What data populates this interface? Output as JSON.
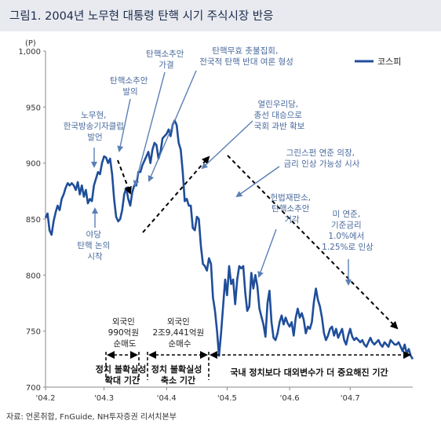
{
  "title": "그림1. 2004년 노무현 대통령 탄핵 시기 주식시장 반응",
  "source": "자료: 언론취합, FnGuide, NH투자증권 리서치본부",
  "colors": {
    "series": "#1f4e9a",
    "arrow": "#000000",
    "annotation": "#4a6a9c",
    "title_bg": "#e8eaf0"
  },
  "chart_data": {
    "type": "line",
    "ylabel": "(P)",
    "ylim": [
      700,
      1000
    ],
    "y_ticks": [
      "1,000",
      "950",
      "900",
      "850",
      "800",
      "750",
      "700"
    ],
    "x_tick_labels": [
      "'04.2",
      "'04.3",
      "'04.4",
      "'04.5",
      "'04.6",
      "'04.7"
    ],
    "x_tick_days": [
      0,
      29,
      60,
      90,
      121,
      151
    ],
    "x_range_days": [
      0,
      182
    ],
    "legend": {
      "name": "코스피",
      "position": "top-right"
    },
    "series": [
      {
        "name": "코스피",
        "x": [
          0,
          1,
          2,
          3,
          4,
          5,
          6,
          7,
          8,
          9,
          10,
          11,
          12,
          13,
          14,
          15,
          16,
          17,
          18,
          19,
          20,
          21,
          22,
          23,
          24,
          25,
          26,
          27,
          28,
          29,
          30,
          31,
          32,
          33,
          34,
          35,
          36,
          37,
          38,
          39,
          40,
          41,
          42,
          43,
          44,
          45,
          46,
          47,
          48,
          49,
          50,
          51,
          52,
          53,
          54,
          55,
          56,
          57,
          58,
          59,
          60,
          61,
          62,
          63,
          64,
          65,
          66,
          67,
          68,
          69,
          70,
          71,
          72,
          73,
          74,
          75,
          76,
          77,
          78,
          79,
          80,
          81,
          82,
          83,
          84,
          85,
          86,
          87,
          88,
          89,
          90,
          91,
          92,
          93,
          94,
          95,
          96,
          97,
          98,
          99,
          100,
          101,
          102,
          103,
          104,
          105,
          106,
          107,
          108,
          109,
          110,
          111,
          112,
          113,
          114,
          115,
          116,
          117,
          118,
          119,
          120,
          121,
          122,
          123,
          124,
          125,
          126,
          127,
          128,
          129,
          130,
          131,
          132,
          133,
          134,
          135,
          136,
          137,
          138,
          139,
          140,
          141,
          142,
          143,
          144,
          145,
          146,
          147,
          148,
          149,
          150,
          151,
          152,
          153,
          154,
          155,
          156,
          157,
          158,
          159,
          160,
          161,
          162,
          163,
          164,
          165,
          166,
          167,
          168,
          169,
          170,
          171,
          172,
          173,
          174,
          175,
          176,
          177,
          178,
          179,
          180,
          181,
          182
        ],
        "values": [
          851,
          855,
          840,
          836,
          848,
          856,
          862,
          858,
          868,
          872,
          878,
          882,
          880,
          882,
          880,
          876,
          883,
          872,
          880,
          870,
          876,
          864,
          868,
          866,
          880,
          886,
          892,
          890,
          900,
          906,
          905,
          900,
          904,
          890,
          868,
          852,
          848,
          850,
          858,
          872,
          878,
          868,
          862,
          874,
          880,
          880,
          892,
          892,
          898,
          902,
          906,
          910,
          900,
          912,
          918,
          916,
          904,
          910,
          922,
          924,
          926,
          930,
          924,
          934,
          938,
          934,
          918,
          912,
          892,
          866,
          868,
          862,
          862,
          842,
          840,
          852,
          850,
          826,
          810,
          808,
          804,
          815,
          810,
          780,
          768,
          750,
          728,
          748,
          772,
          796,
          782,
          808,
          792,
          796,
          774,
          796,
          808,
          806,
          808,
          784,
          768,
          772,
          802,
          788,
          800,
          790,
          770,
          763,
          756,
          745,
          775,
          786,
          758,
          744,
          742,
          748,
          758,
          764,
          756,
          762,
          757,
          754,
          758,
          746,
          762,
          770,
          762,
          766,
          760,
          748,
          754,
          752,
          758,
          776,
          788,
          778,
          772,
          762,
          748,
          742,
          746,
          752,
          754,
          746,
          752,
          744,
          748,
          752,
          742,
          738,
          746,
          752,
          745,
          742,
          744,
          742,
          740,
          742,
          738,
          736,
          740,
          744,
          740,
          738,
          740,
          742,
          738,
          736,
          740,
          738,
          736,
          742,
          740,
          738,
          738,
          740,
          736,
          732,
          738,
          730,
          734,
          728,
          725
        ]
      }
    ],
    "annotations": [
      {
        "key": "a1",
        "lines": [
          "노무현,",
          "한국방송기자클럽",
          "발언"
        ],
        "color": "blue"
      },
      {
        "key": "a2",
        "lines": [
          "탄핵소추안",
          "발의"
        ],
        "color": "blue"
      },
      {
        "key": "a3",
        "lines": [
          "탄핵소추안",
          "가결"
        ],
        "color": "blue"
      },
      {
        "key": "a4",
        "lines": [
          "탄핵무효 촛불집회,",
          "전국적 탄핵 반대 여론 형성"
        ],
        "color": "blue"
      },
      {
        "key": "a5",
        "lines": [
          "열린우리당,",
          "총선 대승으로",
          "국회 과반 확보"
        ],
        "color": "blue"
      },
      {
        "key": "a6",
        "lines": [
          "그린스펀 연준 의장,",
          "금리 인상 가능성 시사"
        ],
        "color": "blue"
      },
      {
        "key": "a7",
        "lines": [
          "헌법재판소,",
          "탄핵소추안",
          "기각"
        ],
        "color": "blue"
      },
      {
        "key": "a8",
        "lines": [
          "미 연준,",
          "기준금리",
          "1.0%에서",
          "1.25%로 인상"
        ],
        "color": "blue"
      },
      {
        "key": "a9",
        "lines": [
          "야당",
          "탄핵 논의",
          "시작"
        ],
        "color": "blue"
      },
      {
        "key": "a10",
        "lines": [
          "외국인",
          "990억원",
          "순매도"
        ],
        "color": "dark"
      },
      {
        "key": "a11",
        "lines": [
          "외국인",
          "2조9,441억원",
          "순매수"
        ],
        "color": "dark"
      }
    ],
    "periods": [
      {
        "key": "p1",
        "lines": [
          "정치 불확실성",
          "확대 기간"
        ]
      },
      {
        "key": "p2",
        "lines": [
          "정치 불확실성",
          "축소 기간"
        ]
      },
      {
        "key": "p3",
        "lines": [
          "국내 정치보다 대외변수가 더 중요해진 기간"
        ]
      }
    ]
  }
}
